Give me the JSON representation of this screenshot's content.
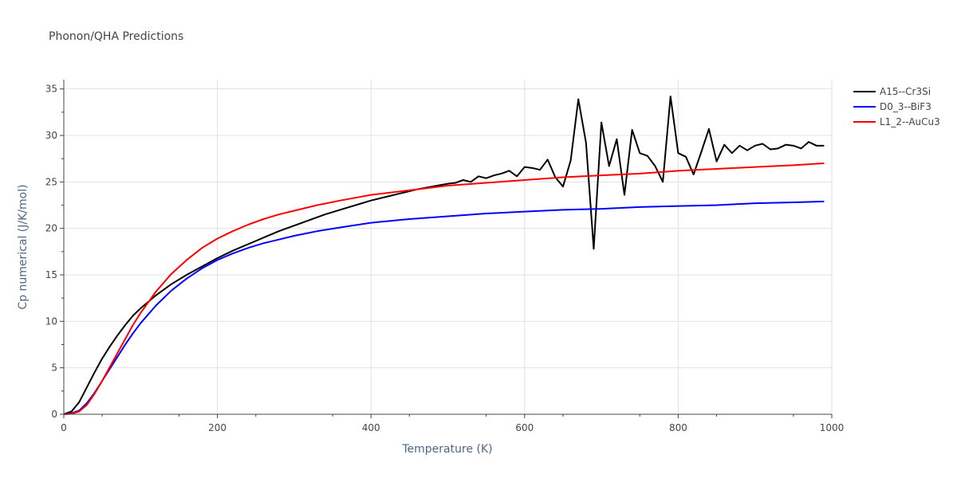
{
  "chart_data": {
    "type": "line",
    "title": "Phonon/QHA Predictions",
    "xlabel": "Temperature (K)",
    "ylabel": "Cp numerical (J/K/mol)",
    "xlim": [
      0,
      1000
    ],
    "ylim": [
      0,
      36
    ],
    "xticks": [
      0,
      200,
      400,
      600,
      800,
      1000
    ],
    "yticks": [
      0,
      5,
      10,
      15,
      20,
      25,
      30,
      35
    ],
    "grid": true,
    "legend_position": "top-right",
    "series": [
      {
        "name": "A15--Cr3Si",
        "color": "#000000",
        "x": [
          0,
          10,
          20,
          30,
          40,
          50,
          60,
          70,
          80,
          90,
          100,
          120,
          140,
          160,
          180,
          200,
          220,
          240,
          260,
          280,
          300,
          320,
          340,
          360,
          380,
          400,
          420,
          440,
          460,
          480,
          500,
          510,
          520,
          530,
          540,
          550,
          560,
          570,
          580,
          590,
          600,
          610,
          620,
          630,
          640,
          650,
          660,
          670,
          680,
          690,
          700,
          710,
          720,
          730,
          740,
          750,
          760,
          770,
          780,
          790,
          800,
          810,
          820,
          830,
          840,
          850,
          860,
          870,
          880,
          890,
          900,
          910,
          920,
          930,
          940,
          950,
          960,
          970,
          980,
          990
        ],
        "y": [
          0,
          0.3,
          1.3,
          2.9,
          4.5,
          6.0,
          7.3,
          8.5,
          9.6,
          10.6,
          11.4,
          12.8,
          14.0,
          15.0,
          15.9,
          16.8,
          17.6,
          18.3,
          19.0,
          19.7,
          20.3,
          20.9,
          21.5,
          22.0,
          22.5,
          23.0,
          23.4,
          23.8,
          24.2,
          24.5,
          24.8,
          24.9,
          25.2,
          25.0,
          25.6,
          25.4,
          25.7,
          25.9,
          26.2,
          25.6,
          26.6,
          26.5,
          26.3,
          27.4,
          25.5,
          24.5,
          27.3,
          33.9,
          29.2,
          17.8,
          31.4,
          26.7,
          29.6,
          23.6,
          30.6,
          28.1,
          27.8,
          26.7,
          25.0,
          34.2,
          28.1,
          27.7,
          25.8,
          28.2,
          30.7,
          27.2,
          29.0,
          28.1,
          28.9,
          28.4,
          28.9,
          29.1,
          28.5,
          28.6,
          29.0,
          28.9,
          28.6,
          29.3,
          28.9,
          28.9
        ]
      },
      {
        "name": "D0_3--BiF3",
        "color": "#0000ff",
        "x": [
          0,
          10,
          20,
          30,
          40,
          50,
          60,
          70,
          80,
          90,
          100,
          120,
          140,
          160,
          180,
          200,
          220,
          240,
          260,
          280,
          300,
          330,
          360,
          400,
          450,
          500,
          550,
          600,
          650,
          700,
          750,
          800,
          850,
          900,
          950,
          990
        ],
        "y": [
          0,
          0.1,
          0.4,
          1.2,
          2.3,
          3.6,
          4.9,
          6.2,
          7.5,
          8.7,
          9.8,
          11.7,
          13.3,
          14.6,
          15.7,
          16.6,
          17.3,
          17.9,
          18.4,
          18.8,
          19.2,
          19.7,
          20.1,
          20.6,
          21.0,
          21.3,
          21.6,
          21.8,
          22.0,
          22.1,
          22.3,
          22.4,
          22.5,
          22.7,
          22.8,
          22.9
        ]
      },
      {
        "name": "L1_2--AuCu3",
        "color": "#ff0000",
        "x": [
          0,
          10,
          20,
          30,
          40,
          50,
          60,
          70,
          80,
          90,
          100,
          120,
          140,
          160,
          180,
          200,
          220,
          240,
          260,
          280,
          300,
          330,
          360,
          400,
          450,
          500,
          550,
          600,
          650,
          700,
          750,
          800,
          850,
          900,
          950,
          990
        ],
        "y": [
          0,
          0.05,
          0.3,
          1.0,
          2.2,
          3.6,
          5.1,
          6.6,
          8.1,
          9.6,
          10.9,
          13.2,
          15.1,
          16.6,
          17.9,
          18.9,
          19.7,
          20.4,
          21.0,
          21.5,
          21.9,
          22.5,
          23.0,
          23.6,
          24.1,
          24.6,
          24.9,
          25.2,
          25.5,
          25.7,
          25.9,
          26.2,
          26.4,
          26.6,
          26.8,
          27.0
        ]
      }
    ]
  }
}
